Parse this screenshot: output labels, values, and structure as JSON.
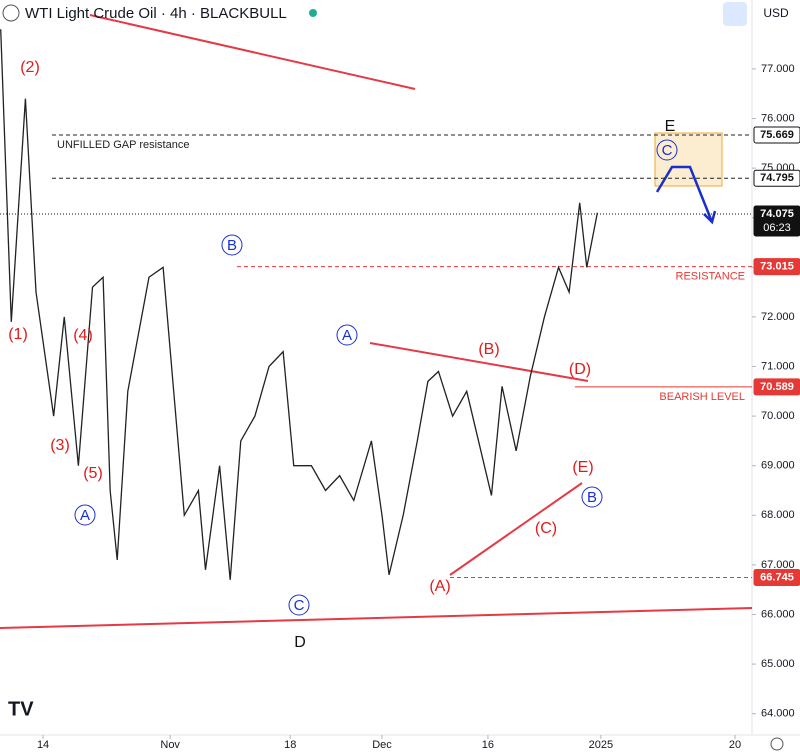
{
  "chart_data": {
    "type": "line",
    "title": "WTI Light Crude Oil · 4h · BLACKBULL",
    "currency": "USD",
    "countdown": "06:23",
    "color": "#222222",
    "x": [
      7,
      8.5,
      10.5,
      12,
      14.5,
      16,
      18,
      20,
      21.5,
      22.5,
      23.5,
      25,
      28,
      30,
      31.5,
      33,
      35,
      36,
      38,
      39.5,
      41,
      43,
      45,
      47,
      48.5,
      51,
      53,
      55,
      57,
      59.5,
      61,
      62,
      64,
      66,
      67.5,
      69,
      71,
      73,
      75.5,
      76.5,
      78,
      80,
      82,
      84,
      86,
      87.5,
      89,
      90,
      91.5
    ],
    "values": [
      77.8,
      71.9,
      76.4,
      72.5,
      70,
      72,
      69,
      72.6,
      72.8,
      68.5,
      67.1,
      70.5,
      72.8,
      73,
      70.5,
      68,
      68.5,
      66.9,
      69,
      66.7,
      69.5,
      70,
      71,
      71.3,
      69,
      69,
      68.5,
      68.8,
      68.3,
      69.5,
      68,
      66.8,
      68,
      69.5,
      70.7,
      70.9,
      70,
      70.5,
      69,
      68.4,
      70.6,
      69.3,
      70.8,
      72,
      73,
      72.5,
      74.3,
      73,
      74.1
    ],
    "xlim": [
      6.9,
      113.4
    ],
    "xticks": [
      {
        "value": 13,
        "label": "14"
      },
      {
        "value": 31,
        "label": "Nov"
      },
      {
        "value": 48,
        "label": "18"
      },
      {
        "value": 61,
        "label": "Dec"
      },
      {
        "value": 76,
        "label": "16"
      },
      {
        "value": 92,
        "label": "2025"
      },
      {
        "value": 111,
        "label": "20"
      }
    ],
    "ylim": [
      63.57,
      78.39
    ],
    "yticks": [
      {
        "value": 64,
        "label": "64.000"
      },
      {
        "value": 65,
        "label": "65.000"
      },
      {
        "value": 66,
        "label": "66.000"
      },
      {
        "value": 67,
        "label": "67.000"
      },
      {
        "value": 68,
        "label": "68.000"
      },
      {
        "value": 69,
        "label": "69.000"
      },
      {
        "value": 70,
        "label": "70.000"
      },
      {
        "value": 71,
        "label": "71.000"
      },
      {
        "value": 72,
        "label": "72.000"
      },
      {
        "value": 73,
        "label": "73.000"
      },
      {
        "value": 74,
        "label": "74.000"
      },
      {
        "value": 75,
        "label": "75.000"
      },
      {
        "value": 76,
        "label": "76.000"
      },
      {
        "value": 77,
        "label": "77.000"
      }
    ],
    "levels": [
      {
        "value": 75.669,
        "color": "#222222",
        "style": "dashed",
        "text": "UNFILLED GAP resistance"
      },
      {
        "value": 74.795,
        "color": "#222222",
        "style": "dashed"
      },
      {
        "value": 74.075,
        "color": "#111111",
        "style": "dotted"
      },
      {
        "value": 73.015,
        "color": "#e53935",
        "style": "dashed",
        "text": "RESISTANCE"
      },
      {
        "value": 70.589,
        "color": "#e53935",
        "style": "solid",
        "text": "BEARISH LEVEL"
      },
      {
        "value": 66.745,
        "color": "#e53935",
        "style": "dashed"
      }
    ],
    "annotations": [
      "(2)",
      "(1)",
      "(4)",
      "(3)",
      "(5)",
      "A",
      "B",
      "C",
      "D",
      "A",
      "(B)",
      "(D)",
      "(E)",
      "B",
      "(C)",
      "(A)",
      "E",
      "C"
    ]
  }
}
